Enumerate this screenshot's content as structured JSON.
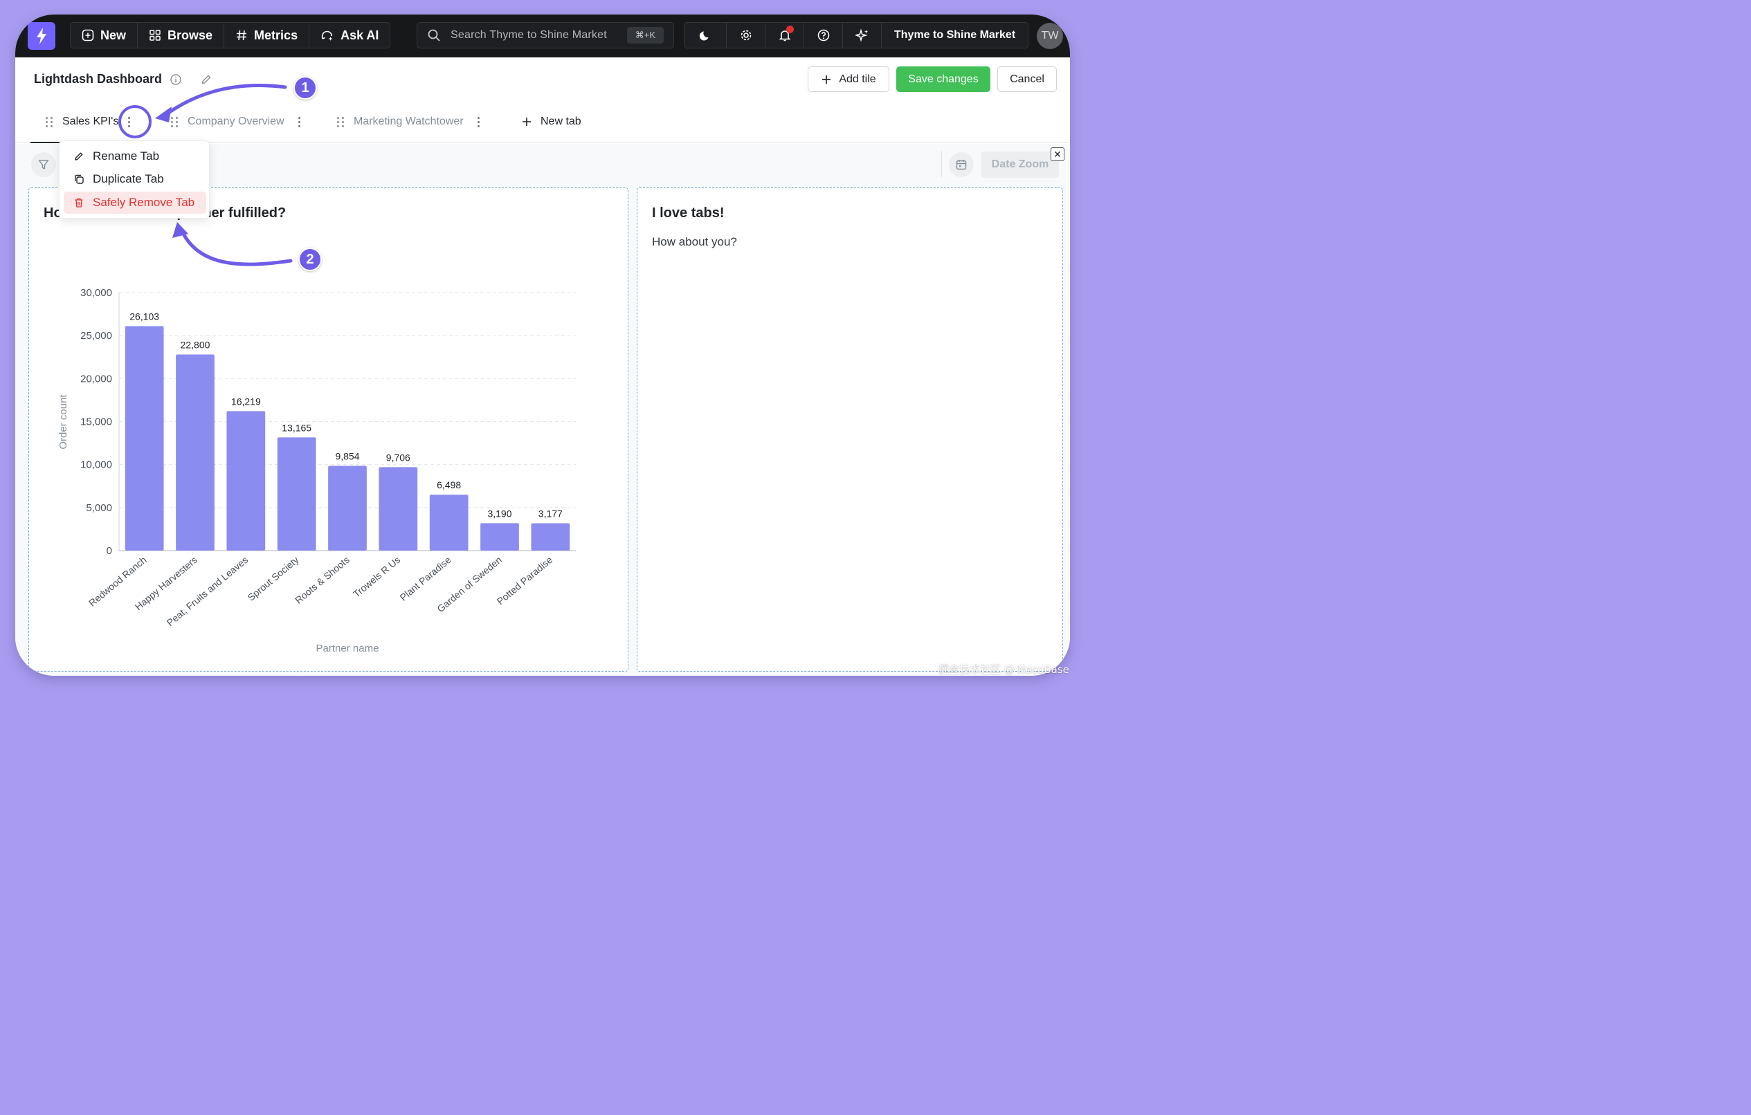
{
  "topnav": {
    "new_label": "New",
    "browse_label": "Browse",
    "metrics_label": "Metrics",
    "ask_ai_label": "Ask AI",
    "search_placeholder": "Search Thyme to Shine Market",
    "search_shortcut": "⌘+K",
    "org_name": "Thyme to Shine Market",
    "avatar_initials": "TW",
    "icons": [
      "lightning-logo-icon",
      "plus-circle-icon",
      "grid-icon",
      "hash-icon",
      "ai-chat-icon",
      "search-icon",
      "moon-icon",
      "gear-icon",
      "bell-icon",
      "help-icon",
      "sparkles-icon"
    ],
    "accent_color": "#7262ff"
  },
  "header": {
    "title": "Lightdash Dashboard",
    "add_tile_label": "Add tile",
    "save_label": "Save changes",
    "cancel_label": "Cancel",
    "save_color": "#40c057"
  },
  "tabs": [
    {
      "label": "Sales KPI's",
      "active": true
    },
    {
      "label": "Company Overview",
      "active": false
    },
    {
      "label": "Marketing Watchtower",
      "active": false
    }
  ],
  "new_tab_label": "New tab",
  "tab_menu": {
    "items": [
      {
        "label": "Rename Tab",
        "icon": "pencil-icon"
      },
      {
        "label": "Duplicate Tab",
        "icon": "copy-icon"
      },
      {
        "label": "Safely Remove Tab",
        "icon": "trash-icon",
        "danger": true
      }
    ]
  },
  "filters": {
    "date_zoom_label": "Date Zoom"
  },
  "tiles": {
    "chart_title_visible_start": "Ho",
    "chart_title_visible_end": "h partner fulfilled?",
    "markdown_title": "I love tabs!",
    "markdown_body": "How about you?"
  },
  "chart_data": {
    "type": "bar",
    "categories": [
      "Redwood Ranch",
      "Happy Harvesters",
      "Peat, Fruits and Leaves",
      "Sprout Society",
      "Roots & Shoots",
      "Trowels R Us",
      "Plant Paradise",
      "Garden of Sweden",
      "Potted Paradise"
    ],
    "values": [
      26103,
      22800,
      16219,
      13165,
      9854,
      9706,
      6498,
      3190,
      3177
    ],
    "value_labels": [
      "26,103",
      "22,800",
      "16,219",
      "13,165",
      "9,854",
      "9,706",
      "6,498",
      "3,190",
      "3,177"
    ],
    "xlabel": "Partner name",
    "ylabel": "Order count",
    "ylim": [
      0,
      30000
    ],
    "yticks": [
      0,
      5000,
      10000,
      15000,
      20000,
      25000,
      30000
    ],
    "ytick_labels": [
      "0",
      "5,000",
      "10,000",
      "15,000",
      "20,000",
      "25,000",
      "30,000"
    ],
    "grid": true,
    "bar_color": "#8b8cef"
  },
  "annotations": {
    "badge_1": "1",
    "badge_2": "2",
    "annotation_color": "#6c5ce7"
  },
  "watermark": "掘金技术社区 @ NocoBase"
}
